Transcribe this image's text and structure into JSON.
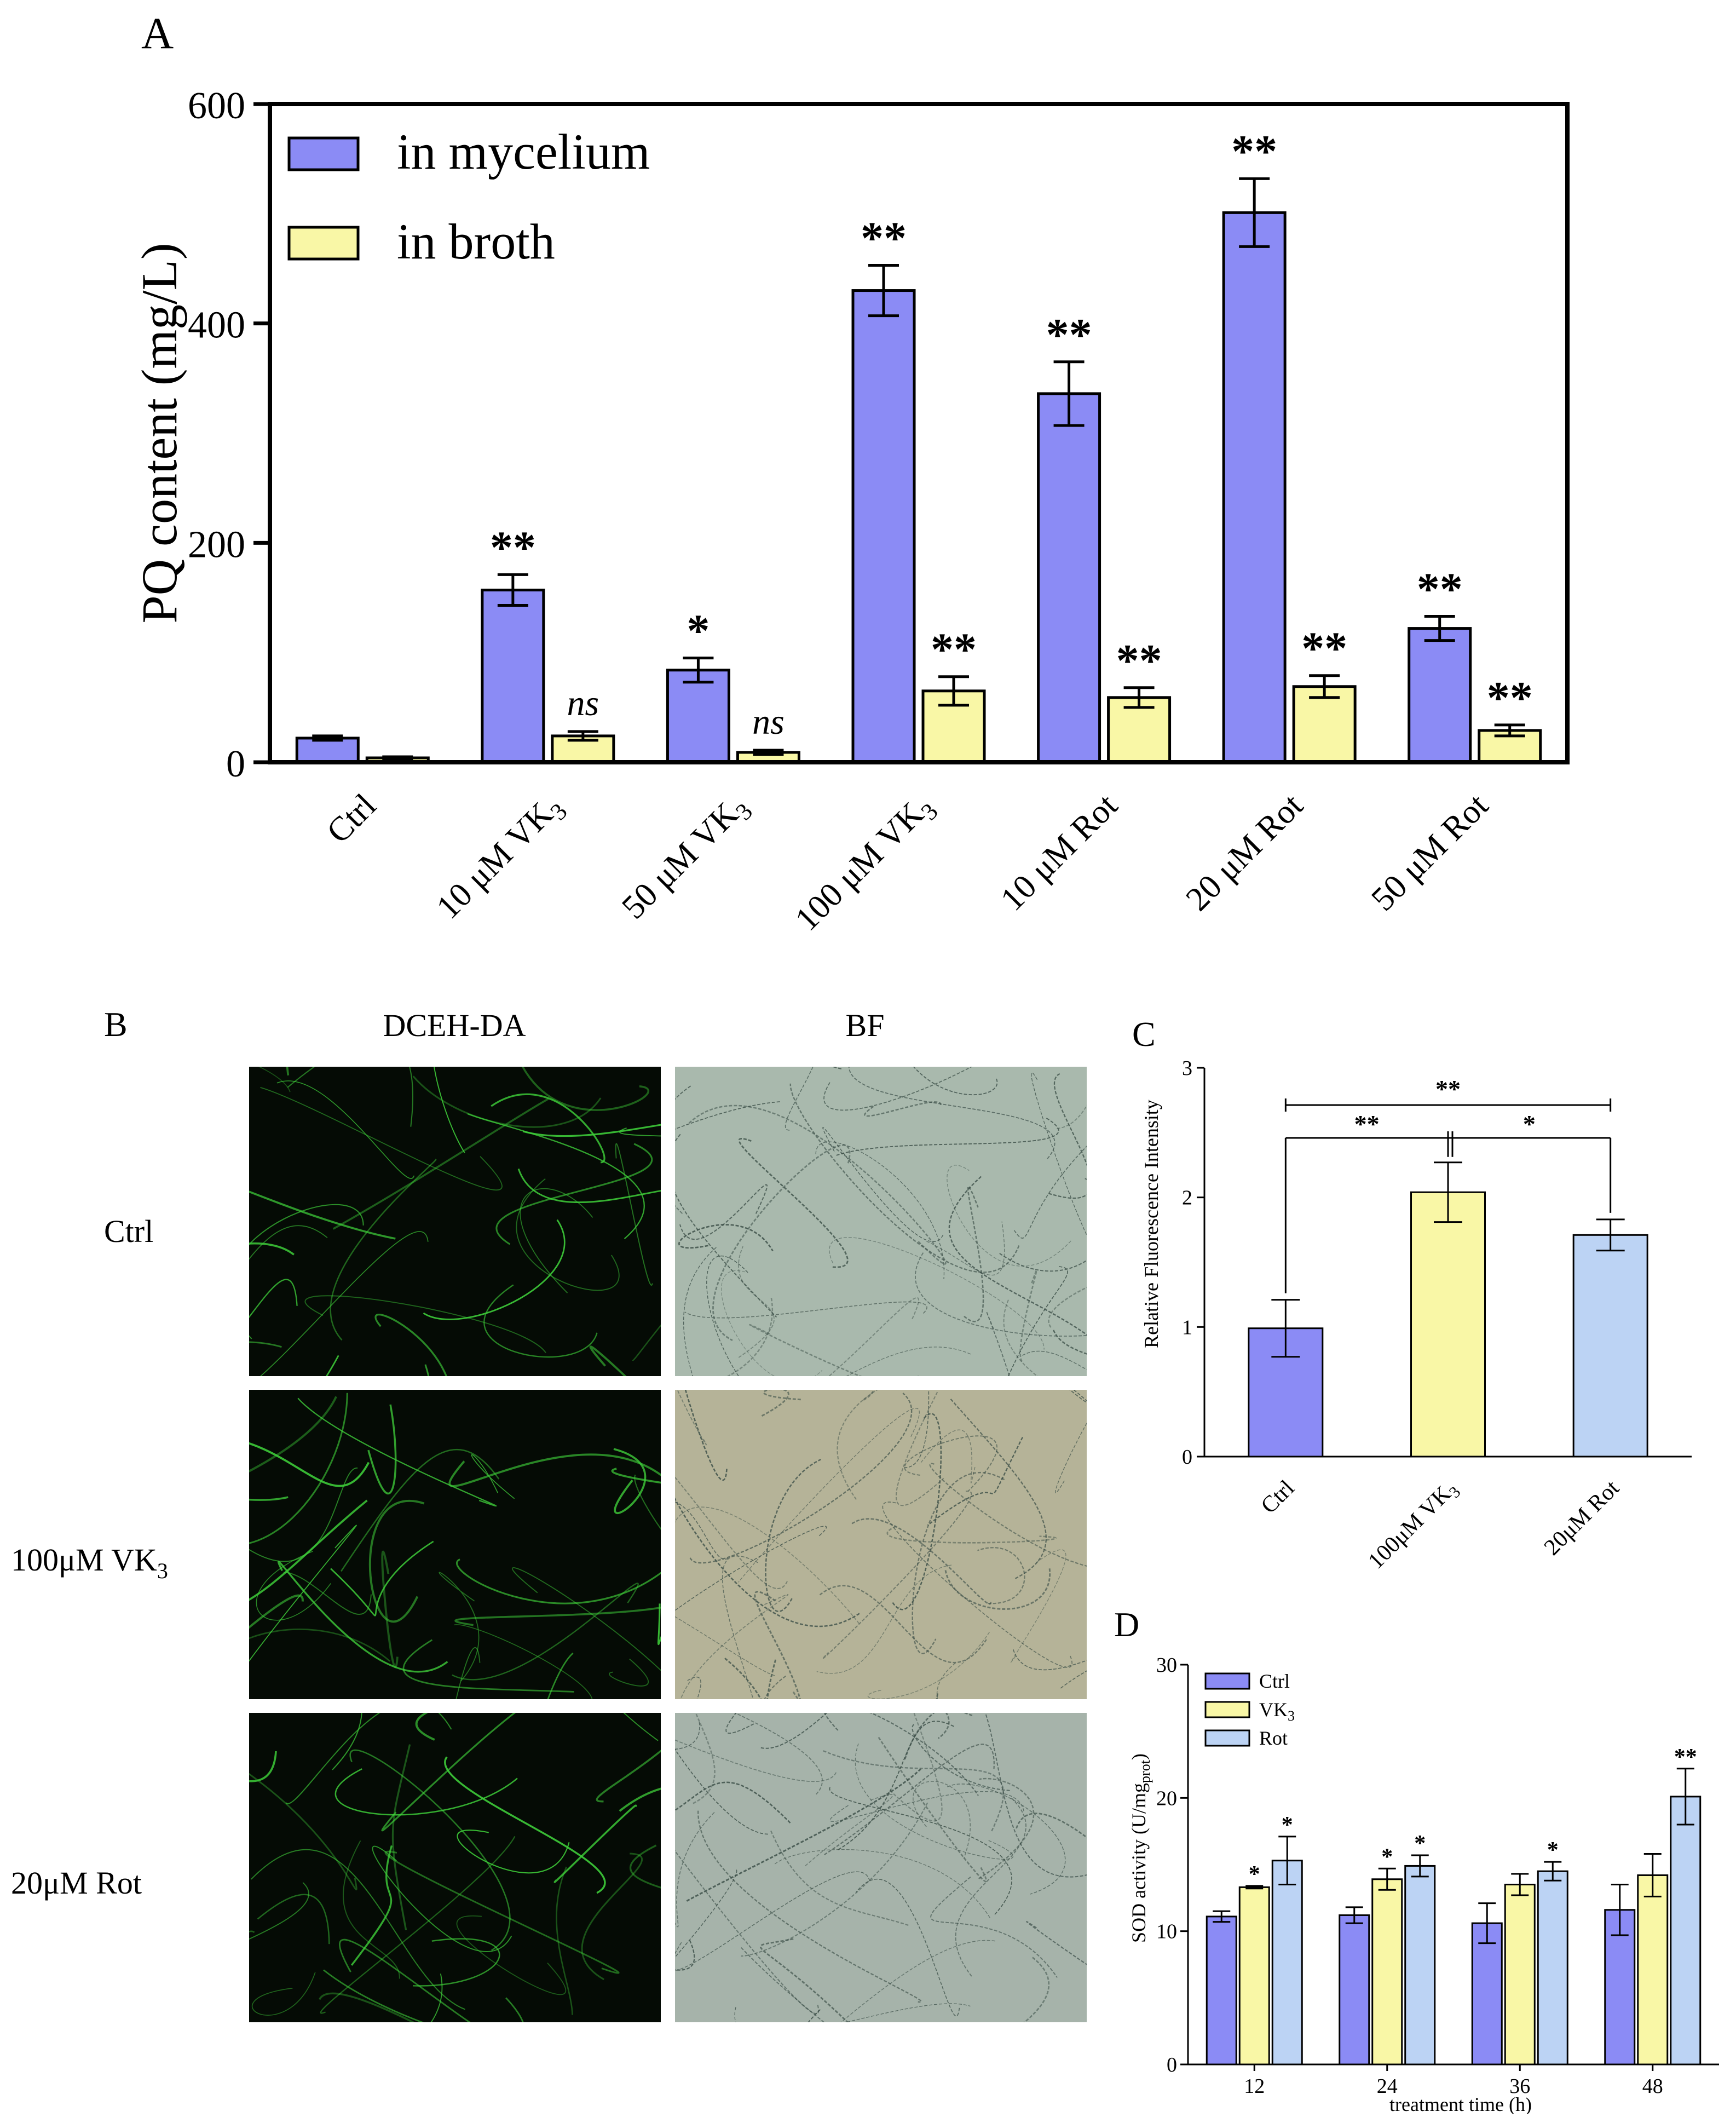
{
  "panel_labels": {
    "a": "A",
    "b": "B",
    "c": "C",
    "d": "D"
  },
  "panel_b": {
    "col_headers": [
      "DCEH-DA",
      "BF"
    ],
    "row_labels": [
      {
        "main": "Ctrl",
        "sub": ""
      },
      {
        "main": "100μM VK",
        "sub": "3"
      },
      {
        "main": "20μM Rot",
        "sub": ""
      }
    ],
    "image_colors": {
      "fluorescence_bg": "#050b05",
      "fluorescence_fiber": "#3fcf3a",
      "brightfield_bg_1": "#a9b9ad",
      "brightfield_bg_2": "#b5b398",
      "brightfield_bg_3": "#a6b3aa",
      "brightfield_fiber": "#3c4f48"
    }
  },
  "chart_data": [
    {
      "id": "A",
      "type": "bar",
      "ylabel": "PQ content (mg/L)",
      "ylim": [
        0,
        600
      ],
      "yticks": [
        0,
        200,
        400,
        600
      ],
      "categories": [
        {
          "main": "Ctrl",
          "sub": ""
        },
        {
          "main": "10 μM VK",
          "sub": "3"
        },
        {
          "main": "50 μM VK",
          "sub": "3"
        },
        {
          "main": "100 μM VK",
          "sub": "3"
        },
        {
          "main": "10 μM Rot",
          "sub": ""
        },
        {
          "main": "20 μM Rot",
          "sub": ""
        },
        {
          "main": "50 μM Rot",
          "sub": ""
        }
      ],
      "series": [
        {
          "name": "in mycelium",
          "color": "#8b8bf5",
          "values": [
            22,
            157,
            84,
            430,
            336,
            501,
            122
          ],
          "errors": [
            2,
            14,
            11,
            23,
            29,
            31,
            11
          ],
          "annotations": [
            "",
            "**",
            "*",
            "**",
            "**",
            "**",
            "**"
          ]
        },
        {
          "name": "in broth",
          "color": "#f9f7a6",
          "values": [
            4,
            24,
            9,
            65,
            59,
            69,
            29
          ],
          "errors": [
            1,
            4,
            2,
            13,
            9,
            10,
            5
          ],
          "annotations": [
            "",
            "ns",
            "ns",
            "**",
            "**",
            "**",
            "**"
          ]
        }
      ],
      "legend": "top-left"
    },
    {
      "id": "C",
      "type": "bar",
      "ylabel": "Relative Fluorescence Intensity",
      "ylim": [
        0,
        3
      ],
      "yticks": [
        0,
        1,
        2,
        3
      ],
      "categories": [
        {
          "main": "Ctrl",
          "sub": ""
        },
        {
          "main": "100μM VK",
          "sub": "3"
        },
        {
          "main": "20μM Rot",
          "sub": ""
        }
      ],
      "values": [
        0.99,
        2.04,
        1.71
      ],
      "errors": [
        0.22,
        0.23,
        0.12
      ],
      "colors": [
        "#8b8bf5",
        "#f9f7a6",
        "#bcd3f4"
      ],
      "significance": [
        {
          "from": 0,
          "to": 2,
          "label": "**"
        },
        {
          "from": 0,
          "to": 1,
          "label": "**"
        },
        {
          "from": 1,
          "to": 2,
          "label": "*"
        }
      ]
    },
    {
      "id": "D",
      "type": "bar",
      "ylabel_main": "SOD activity (U/mg",
      "ylabel_sub": "prot",
      "ylabel_close": ")",
      "xlabel": "treatment time (h)",
      "ylim": [
        0,
        30
      ],
      "yticks": [
        0,
        10,
        20,
        30
      ],
      "categories": [
        "12",
        "24",
        "36",
        "48"
      ],
      "series": [
        {
          "name": "Ctrl",
          "name_sub": "",
          "color": "#8b8bf5",
          "values": [
            11.1,
            11.2,
            10.6,
            11.6
          ],
          "errors": [
            0.4,
            0.6,
            1.5,
            1.9
          ],
          "annotations": [
            "",
            "",
            "",
            ""
          ]
        },
        {
          "name": "VK",
          "name_sub": "3",
          "color": "#f9f7a6",
          "values": [
            13.3,
            13.9,
            13.5,
            14.2
          ],
          "errors": [
            0.1,
            0.8,
            0.8,
            1.6
          ],
          "annotations": [
            "*",
            "*",
            "",
            ""
          ]
        },
        {
          "name": "Rot",
          "name_sub": "",
          "color": "#bcd3f4",
          "values": [
            15.3,
            14.9,
            14.5,
            20.1
          ],
          "errors": [
            1.8,
            0.8,
            0.7,
            2.1
          ],
          "annotations": [
            "*",
            "*",
            "*",
            "**"
          ]
        }
      ],
      "legend": "top-left"
    }
  ]
}
